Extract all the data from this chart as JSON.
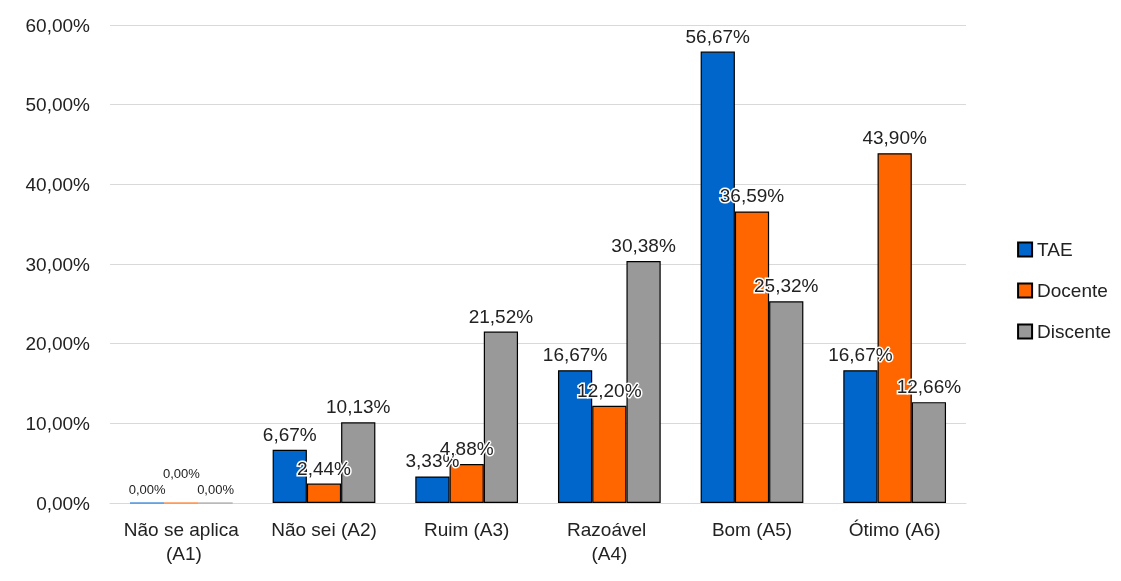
{
  "chart_data": {
    "type": "bar",
    "categories": [
      "Não se aplica (A1)",
      "Não sei (A2)",
      "Ruim (A3)",
      "Razoável (A4)",
      "Bom (A5)",
      "Ótimo (A6)"
    ],
    "series": [
      {
        "name": "TAE",
        "color": "#0066cc",
        "values": [
          0,
          6.67,
          3.33,
          16.67,
          56.67,
          16.67
        ],
        "value_labels": [
          "0,00%",
          "6,67%",
          "3,33%",
          "16,67%",
          "56,67%",
          "16,67%"
        ]
      },
      {
        "name": "Docente",
        "color": "#ff6600",
        "values": [
          0,
          2.44,
          4.88,
          12.2,
          36.59,
          43.9
        ],
        "value_labels": [
          "0,00%",
          "2,44%",
          "4,88%",
          "12,20%",
          "36,59%",
          "43,90%"
        ]
      },
      {
        "name": "Discente",
        "color": "#999999",
        "values": [
          0,
          10.13,
          21.52,
          30.38,
          25.32,
          12.66
        ],
        "value_labels": [
          "0,00%",
          "10,13%",
          "21,52%",
          "30,38%",
          "25,32%",
          "12,66%"
        ]
      }
    ],
    "ylim": [
      0,
      60
    ],
    "yticks": [
      {
        "value": 0,
        "label": "0,00%"
      },
      {
        "value": 10,
        "label": "10,00%"
      },
      {
        "value": 20,
        "label": "20,00%"
      },
      {
        "value": 30,
        "label": "30,00%"
      },
      {
        "value": 40,
        "label": "40,00%"
      },
      {
        "value": 50,
        "label": "50,00%"
      },
      {
        "value": 60,
        "label": "60,00%"
      }
    ],
    "grid": "y",
    "legend": "right"
  }
}
